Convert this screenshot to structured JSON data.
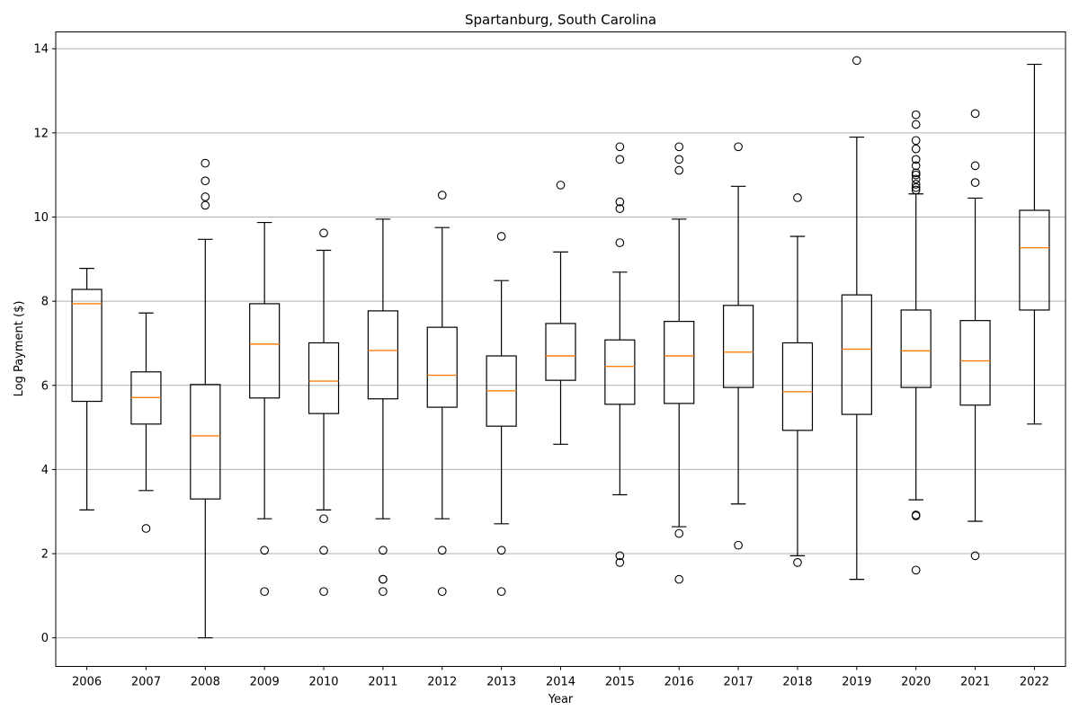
{
  "chart_data": {
    "type": "box",
    "title": "Spartanburg, South Carolina",
    "xlabel": "Year",
    "ylabel": "Log Payment ($)",
    "ylim": [
      -0.68,
      14.4
    ],
    "yticks": [
      0,
      2,
      4,
      6,
      8,
      10,
      12,
      14
    ],
    "grid": "horizontal",
    "colors": {
      "box": "#000000",
      "median": "#ff7f0e",
      "grid": "#b0b0b0"
    },
    "categories": [
      "2006",
      "2007",
      "2008",
      "2009",
      "2010",
      "2011",
      "2012",
      "2013",
      "2014",
      "2015",
      "2016",
      "2017",
      "2018",
      "2019",
      "2020",
      "2021",
      "2022"
    ],
    "boxes": [
      {
        "year": "2006",
        "whislo": 3.04,
        "q1": 5.62,
        "med": 7.94,
        "q3": 8.28,
        "whishi": 8.78,
        "fliers": []
      },
      {
        "year": "2007",
        "whislo": 3.5,
        "q1": 5.08,
        "med": 5.71,
        "q3": 6.32,
        "whishi": 7.72,
        "fliers": [
          2.6
        ]
      },
      {
        "year": "2008",
        "whislo": 0.0,
        "q1": 3.3,
        "med": 4.8,
        "q3": 6.02,
        "whishi": 9.47,
        "fliers": [
          10.28,
          10.48,
          10.86,
          11.28
        ]
      },
      {
        "year": "2009",
        "whislo": 2.83,
        "q1": 5.7,
        "med": 6.98,
        "q3": 7.94,
        "whishi": 9.87,
        "fliers": [
          2.08,
          1.1
        ]
      },
      {
        "year": "2010",
        "whislo": 3.04,
        "q1": 5.33,
        "med": 6.1,
        "q3": 7.01,
        "whishi": 9.21,
        "fliers": [
          9.62,
          2.83,
          2.08,
          1.1
        ]
      },
      {
        "year": "2011",
        "whislo": 2.83,
        "q1": 5.68,
        "med": 6.83,
        "q3": 7.77,
        "whishi": 9.95,
        "fliers": [
          2.08,
          1.39,
          1.39,
          1.1
        ]
      },
      {
        "year": "2012",
        "whislo": 2.83,
        "q1": 5.48,
        "med": 6.24,
        "q3": 7.38,
        "whishi": 9.75,
        "fliers": [
          10.52,
          2.08,
          1.1
        ]
      },
      {
        "year": "2013",
        "whislo": 2.71,
        "q1": 5.03,
        "med": 5.87,
        "q3": 6.7,
        "whishi": 8.49,
        "fliers": [
          9.54,
          2.08,
          1.1
        ]
      },
      {
        "year": "2014",
        "whislo": 4.6,
        "q1": 6.12,
        "med": 6.7,
        "q3": 7.47,
        "whishi": 9.17,
        "fliers": [
          10.76
        ]
      },
      {
        "year": "2015",
        "whislo": 3.4,
        "q1": 5.55,
        "med": 6.45,
        "q3": 7.08,
        "whishi": 8.69,
        "fliers": [
          9.39,
          10.2,
          10.36,
          11.37,
          11.67,
          1.95,
          1.79
        ]
      },
      {
        "year": "2016",
        "whislo": 2.64,
        "q1": 5.57,
        "med": 6.7,
        "q3": 7.52,
        "whishi": 9.95,
        "fliers": [
          11.11,
          11.37,
          11.67,
          2.48,
          1.39
        ]
      },
      {
        "year": "2017",
        "whislo": 3.18,
        "q1": 5.95,
        "med": 6.79,
        "q3": 7.9,
        "whishi": 10.73,
        "fliers": [
          11.67,
          2.2
        ]
      },
      {
        "year": "2018",
        "whislo": 1.95,
        "q1": 4.93,
        "med": 5.85,
        "q3": 7.01,
        "whishi": 9.54,
        "fliers": [
          10.46,
          1.79
        ]
      },
      {
        "year": "2019",
        "whislo": 1.39,
        "q1": 5.31,
        "med": 6.86,
        "q3": 8.15,
        "whishi": 11.9,
        "fliers": [
          13.72
        ]
      },
      {
        "year": "2020",
        "whislo": 3.28,
        "q1": 5.95,
        "med": 6.82,
        "q3": 7.79,
        "whishi": 10.55,
        "fliers": [
          10.64,
          10.7,
          10.78,
          10.9,
          11.0,
          11.05,
          11.22,
          11.37,
          11.62,
          11.82,
          12.2,
          12.43,
          2.9,
          2.92,
          1.61
        ]
      },
      {
        "year": "2021",
        "whislo": 2.77,
        "q1": 5.53,
        "med": 6.58,
        "q3": 7.54,
        "whishi": 10.45,
        "fliers": [
          10.82,
          11.22,
          12.46,
          1.95
        ]
      },
      {
        "year": "2022",
        "whislo": 5.08,
        "q1": 7.79,
        "med": 9.27,
        "q3": 10.16,
        "whishi": 13.63,
        "fliers": []
      }
    ]
  }
}
